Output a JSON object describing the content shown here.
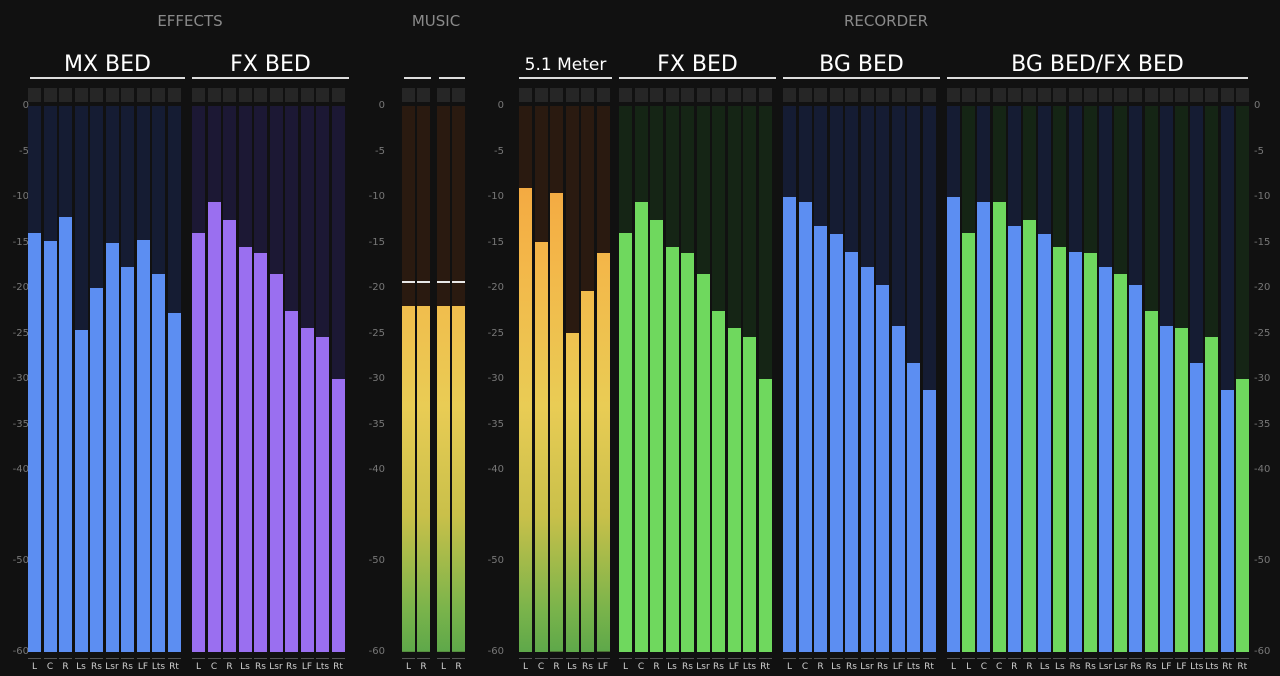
{
  "sections": [
    {
      "id": "effects",
      "label": "EFFECTS"
    },
    {
      "id": "music",
      "label": "MUSIC"
    },
    {
      "id": "recorder",
      "label": "RECORDER"
    }
  ],
  "scale": {
    "min": -60,
    "max": 0,
    "tick_values": [
      0,
      -5,
      -10,
      -15,
      -20,
      -25,
      -30,
      -35,
      -40,
      -50,
      -60
    ],
    "tick_labels": [
      "0",
      "-5",
      "-10",
      "-15",
      "-20",
      "-25",
      "-30",
      "-35",
      "-40",
      "-50",
      "-60"
    ]
  },
  "colors": {
    "blue": "#5c8ef2",
    "purple": "#9a6ff0",
    "green": "#6fd85e",
    "blue_bg": "#151c33",
    "purple_bg": "#1c1834",
    "green_bg": "#152515",
    "orange_bg": "#2a1a10"
  },
  "groups": [
    {
      "id": "mx-bed",
      "title": "MX BED",
      "channels": [
        {
          "label": "L",
          "level": -14,
          "color": "blue"
        },
        {
          "label": "C",
          "level": -14.8,
          "color": "blue"
        },
        {
          "label": "R",
          "level": -12.2,
          "color": "blue"
        },
        {
          "label": "Ls",
          "level": -24.6,
          "color": "blue"
        },
        {
          "label": "Rs",
          "level": -20,
          "color": "blue"
        },
        {
          "label": "Lsr",
          "level": -15,
          "color": "blue"
        },
        {
          "label": "Rs",
          "level": -17.7,
          "color": "blue"
        },
        {
          "label": "LF",
          "level": -14.7,
          "color": "blue"
        },
        {
          "label": "Lts",
          "level": -18.5,
          "color": "blue"
        },
        {
          "label": "Rt",
          "level": -22.7,
          "color": "blue"
        }
      ]
    },
    {
      "id": "fx-bed-effects",
      "title": "FX BED",
      "channels": [
        {
          "label": "L",
          "level": -14,
          "color": "purple"
        },
        {
          "label": "C",
          "level": -10.6,
          "color": "purple"
        },
        {
          "label": "R",
          "level": -12.5,
          "color": "purple"
        },
        {
          "label": "Ls",
          "level": -15.5,
          "color": "purple"
        },
        {
          "label": "Rs",
          "level": -16.2,
          "color": "purple"
        },
        {
          "label": "Lsr",
          "level": -18.5,
          "color": "purple"
        },
        {
          "label": "Rs",
          "level": -22.5,
          "color": "purple"
        },
        {
          "label": "LF",
          "level": -24.4,
          "color": "purple"
        },
        {
          "label": "Lts",
          "level": -25.4,
          "color": "purple"
        },
        {
          "label": "Rt",
          "level": -30,
          "color": "purple"
        }
      ]
    },
    {
      "id": "music-1",
      "title": "",
      "channels": [
        {
          "label": "L",
          "level": -22,
          "peak": -19.2,
          "color": "gradient"
        },
        {
          "label": "R",
          "level": -22,
          "peak": -19.2,
          "color": "gradient"
        }
      ]
    },
    {
      "id": "music-2",
      "title": "",
      "channels": [
        {
          "label": "L",
          "level": -22,
          "peak": -19.2,
          "color": "gradient"
        },
        {
          "label": "R",
          "level": -22,
          "peak": -19.2,
          "color": "gradient"
        }
      ]
    },
    {
      "id": "meter-51",
      "title": "5.1 Meter",
      "channels": [
        {
          "label": "L",
          "level": -9,
          "color": "gradient"
        },
        {
          "label": "C",
          "level": -14.9,
          "color": "gradient"
        },
        {
          "label": "R",
          "level": -9.6,
          "color": "gradient"
        },
        {
          "label": "Ls",
          "level": -24.9,
          "color": "gradient"
        },
        {
          "label": "Rs",
          "level": -20.3,
          "color": "gradient"
        },
        {
          "label": "LF",
          "level": -16.2,
          "color": "gradient"
        }
      ]
    },
    {
      "id": "fx-bed-recorder",
      "title": "FX BED",
      "channels": [
        {
          "label": "L",
          "level": -14,
          "color": "green"
        },
        {
          "label": "C",
          "level": -10.6,
          "color": "green"
        },
        {
          "label": "R",
          "level": -12.5,
          "color": "green"
        },
        {
          "label": "Ls",
          "level": -15.5,
          "color": "green"
        },
        {
          "label": "Rs",
          "level": -16.2,
          "color": "green"
        },
        {
          "label": "Lsr",
          "level": -18.5,
          "color": "green"
        },
        {
          "label": "Rs",
          "level": -22.5,
          "color": "green"
        },
        {
          "label": "LF",
          "level": -24.4,
          "color": "green"
        },
        {
          "label": "Lts",
          "level": -25.4,
          "color": "green"
        },
        {
          "label": "Rt",
          "level": -30,
          "color": "green"
        }
      ]
    },
    {
      "id": "bg-bed",
      "title": "BG BED",
      "channels": [
        {
          "label": "L",
          "level": -10,
          "color": "blue"
        },
        {
          "label": "C",
          "level": -10.6,
          "color": "blue"
        },
        {
          "label": "R",
          "level": -13.2,
          "color": "blue"
        },
        {
          "label": "Ls",
          "level": -14.1,
          "color": "blue"
        },
        {
          "label": "Rs",
          "level": -16,
          "color": "blue"
        },
        {
          "label": "Lsr",
          "level": -17.7,
          "color": "blue"
        },
        {
          "label": "Rs",
          "level": -19.7,
          "color": "blue"
        },
        {
          "label": "LF",
          "level": -24.2,
          "color": "blue"
        },
        {
          "label": "Lts",
          "level": -28.2,
          "color": "blue"
        },
        {
          "label": "Rt",
          "level": -31.2,
          "color": "blue"
        }
      ]
    },
    {
      "id": "bg-fx-bed",
      "title": "BG BED/FX BED",
      "channels": [
        {
          "label": "L",
          "level": -10,
          "color": "blue"
        },
        {
          "label": "L",
          "level": -14,
          "color": "green"
        },
        {
          "label": "C",
          "level": -10.6,
          "color": "blue"
        },
        {
          "label": "C",
          "level": -10.6,
          "color": "green"
        },
        {
          "label": "R",
          "level": -13.2,
          "color": "blue"
        },
        {
          "label": "R",
          "level": -12.5,
          "color": "green"
        },
        {
          "label": "Ls",
          "level": -14.1,
          "color": "blue"
        },
        {
          "label": "Ls",
          "level": -15.5,
          "color": "green"
        },
        {
          "label": "Rs",
          "level": -16,
          "color": "blue"
        },
        {
          "label": "Rs",
          "level": -16.2,
          "color": "green"
        },
        {
          "label": "Lsr",
          "level": -17.7,
          "color": "blue"
        },
        {
          "label": "Lsr",
          "level": -18.5,
          "color": "green"
        },
        {
          "label": "Rs",
          "level": -19.7,
          "color": "blue"
        },
        {
          "label": "Rs",
          "level": -22.5,
          "color": "green"
        },
        {
          "label": "LF",
          "level": -24.2,
          "color": "blue"
        },
        {
          "label": "LF",
          "level": -24.4,
          "color": "green"
        },
        {
          "label": "Lts",
          "level": -28.2,
          "color": "blue"
        },
        {
          "label": "Lts",
          "level": -25.4,
          "color": "green"
        },
        {
          "label": "Rt",
          "level": -31.2,
          "color": "blue"
        },
        {
          "label": "Rt",
          "level": -30,
          "color": "green"
        }
      ]
    }
  ]
}
